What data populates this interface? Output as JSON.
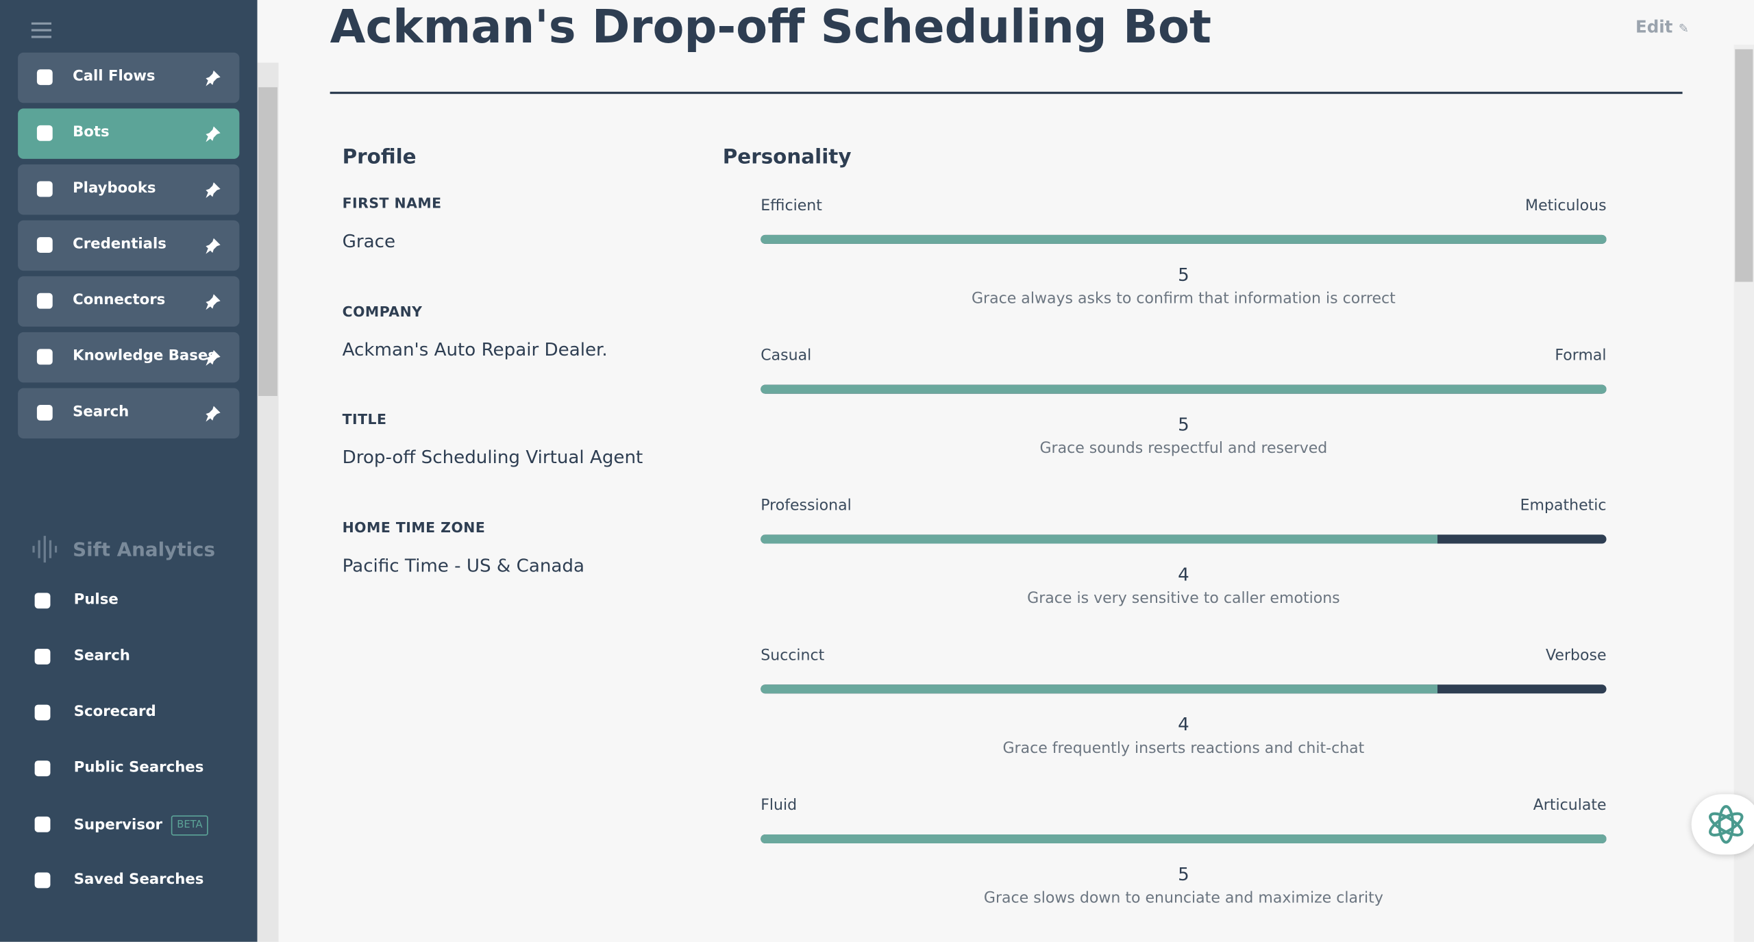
{
  "header": {
    "title": "Ackman's Drop-off Scheduling Bot",
    "edit": "Edit"
  },
  "sidebar": {
    "pinned": [
      {
        "label": "Call Flows"
      },
      {
        "label": "Bots",
        "active": true
      },
      {
        "label": "Playbooks"
      },
      {
        "label": "Credentials"
      },
      {
        "label": "Connectors"
      },
      {
        "label": "Knowledge Bases"
      },
      {
        "label": "Search"
      }
    ],
    "analytics_title": "Sift Analytics",
    "analytics": [
      {
        "label": "Pulse"
      },
      {
        "label": "Search"
      },
      {
        "label": "Scorecard"
      },
      {
        "label": "Public Searches"
      },
      {
        "label": "Supervisor",
        "badge": "BETA"
      },
      {
        "label": "Saved Searches"
      }
    ]
  },
  "profile": {
    "title": "Profile",
    "fields": [
      {
        "label": "FIRST NAME",
        "value": "Grace"
      },
      {
        "label": "COMPANY",
        "value": "Ackman's Auto Repair Dealer."
      },
      {
        "label": "TITLE",
        "value": "Drop-off Scheduling Virtual Agent"
      },
      {
        "label": "HOME TIME ZONE",
        "value": "Pacific Time - US & Canada"
      }
    ]
  },
  "personality": {
    "title": "Personality",
    "traits": [
      {
        "left": "Efficient",
        "right": "Meticulous",
        "value": 5,
        "description": "Grace always asks to confirm that information is correct"
      },
      {
        "left": "Casual",
        "right": "Formal",
        "value": 5,
        "description": "Grace sounds respectful and reserved"
      },
      {
        "left": "Professional",
        "right": "Empathetic",
        "value": 4,
        "description": "Grace is very sensitive to caller emotions"
      },
      {
        "left": "Succinct",
        "right": "Verbose",
        "value": 4,
        "description": "Grace frequently inserts reactions and chit-chat"
      },
      {
        "left": "Fluid",
        "right": "Articulate",
        "value": 5,
        "description": "Grace slows down to enunciate and maximize clarity"
      }
    ]
  }
}
